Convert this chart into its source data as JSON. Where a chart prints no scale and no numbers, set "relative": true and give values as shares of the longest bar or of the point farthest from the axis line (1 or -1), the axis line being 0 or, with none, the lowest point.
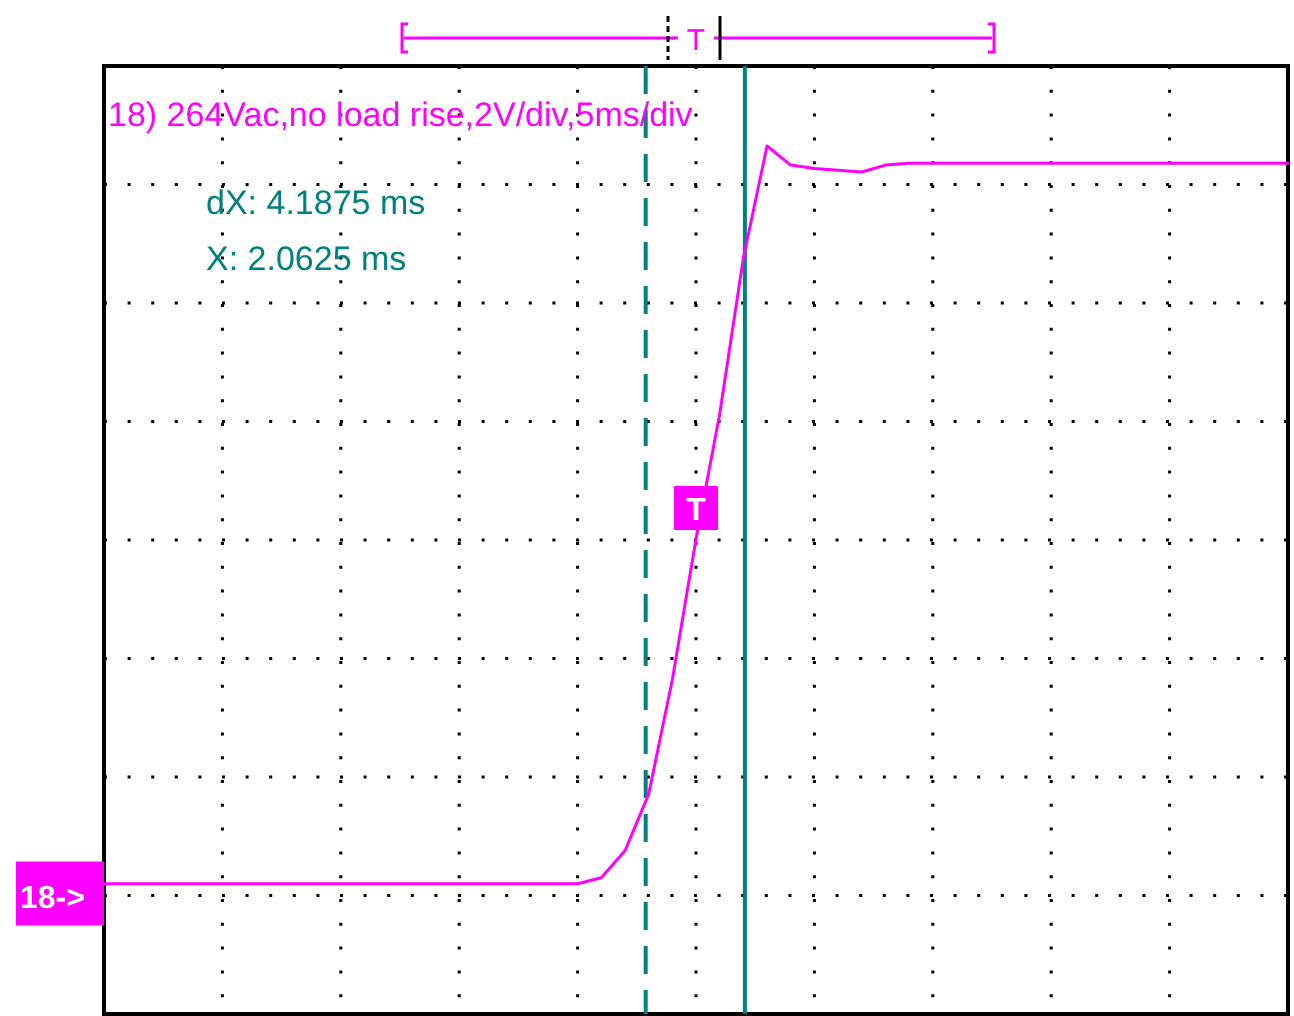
{
  "chart_data": {
    "type": "line",
    "title": "18) 264Vac,no load rise,2V/div,5ms/div",
    "relative": true,
    "categories": [
      null,
      null,
      null,
      null,
      null,
      null,
      null,
      null,
      null,
      null,
      null,
      null,
      null,
      null,
      null,
      null,
      null,
      null,
      null,
      null,
      null,
      null,
      null,
      null,
      null,
      null,
      null,
      null,
      null,
      null,
      null,
      null,
      null,
      null,
      null,
      null,
      null,
      null,
      null,
      null,
      null,
      null,
      null,
      null,
      null,
      null,
      null,
      null,
      null,
      null,
      null
    ],
    "series": [
      {
        "color": "#ff00ff",
        "values": [
          0.15,
          0.15,
          0.15,
          0.15,
          0.15,
          0.15,
          0.15,
          0.15,
          0.15,
          0.15,
          0.15,
          0.15,
          0.15,
          0.15,
          0.15,
          0.15,
          0.15,
          0.15,
          0.15,
          0.15,
          0.15,
          0.157,
          0.188,
          0.253,
          0.385,
          0.547,
          0.691,
          0.871,
          1,
          0.978,
          0.974,
          0.972,
          0.97,
          0.978,
          0.98,
          0.98,
          0.98,
          0.98,
          0.98,
          0.98,
          0.98,
          0.98,
          0.98,
          0.98,
          0.98,
          0.98,
          0.98,
          0.98,
          0.98,
          0.98,
          0.98
        ]
      }
    ],
    "grid": true,
    "line_style": "solid",
    "annotations": [
      "dX: 4.1875 ms",
      "X: 2.0625 ms",
      "T",
      "T",
      "18->"
    ]
  }
}
